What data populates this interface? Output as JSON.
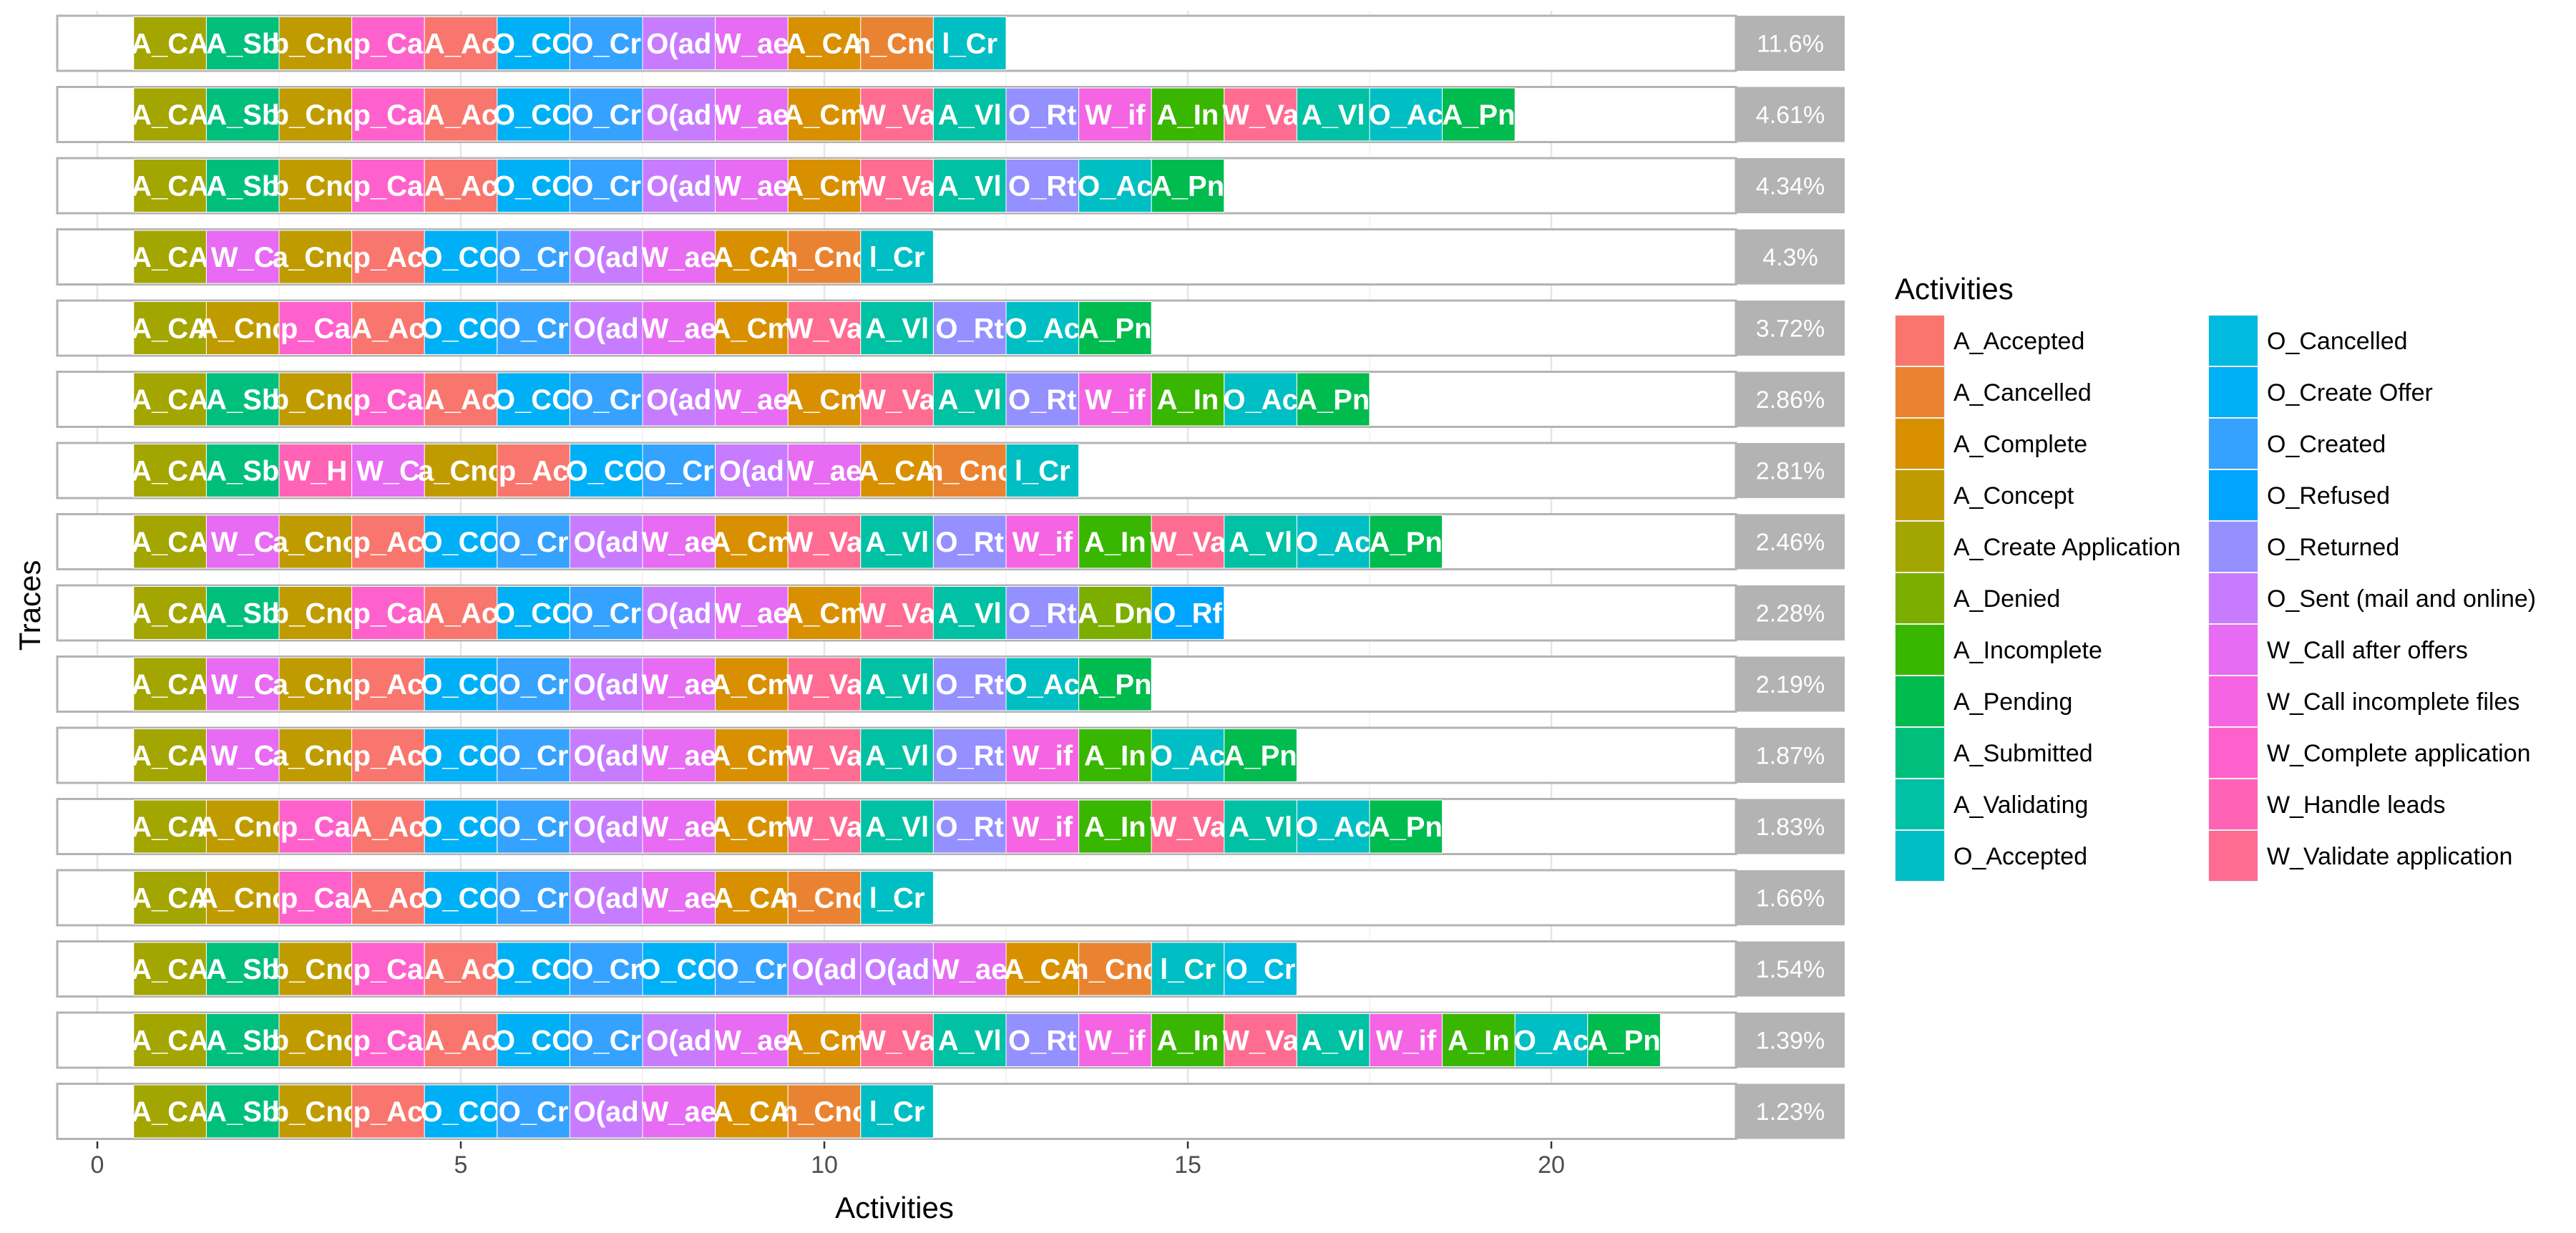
{
  "chart_data": {
    "type": "trace_explorer",
    "xlabel": "Activities",
    "ylabel": "Traces",
    "legend_title": "Activities",
    "legend_position": "right",
    "grid": true,
    "xlim": [
      -0.5,
      24.2
    ],
    "xticks": [
      0,
      5,
      10,
      15,
      20
    ],
    "activities": [
      {
        "name": "A_Accepted",
        "color": "#F8766D"
      },
      {
        "name": "A_Cancelled",
        "color": "#EA8331"
      },
      {
        "name": "A_Complete",
        "color": "#D89000"
      },
      {
        "name": "A_Concept",
        "color": "#C09B00"
      },
      {
        "name": "A_Create Application",
        "color": "#A3A500"
      },
      {
        "name": "A_Denied",
        "color": "#7CAE00"
      },
      {
        "name": "A_Incomplete",
        "color": "#39B600"
      },
      {
        "name": "A_Pending",
        "color": "#00BB4E"
      },
      {
        "name": "A_Submitted",
        "color": "#00BF7D"
      },
      {
        "name": "A_Validating",
        "color": "#00C1A3"
      },
      {
        "name": "O_Accepted",
        "color": "#00BFC4"
      },
      {
        "name": "O_Cancelled",
        "color": "#00BAE0"
      },
      {
        "name": "O_Create Offer",
        "color": "#00B0F6"
      },
      {
        "name": "O_Created",
        "color": "#35A2FF"
      },
      {
        "name": "O_Refused",
        "color": "#00A5FF"
      },
      {
        "name": "O_Returned",
        "color": "#9590FF"
      },
      {
        "name": "O_Sent (mail and online)",
        "color": "#C77CFF"
      },
      {
        "name": "W_Call after offers",
        "color": "#E76BF3"
      },
      {
        "name": "W_Call incomplete files",
        "color": "#F564E3"
      },
      {
        "name": "W_Complete application",
        "color": "#FF61CC"
      },
      {
        "name": "W_Handle leads",
        "color": "#FF63B6"
      },
      {
        "name": "W_Validate application",
        "color": "#FF6C91"
      }
    ],
    "traces": [
      {
        "percent": "11.6%",
        "labels": [
          "A_CA",
          "A_Sb",
          "b_Cnc",
          "p_Ca",
          "A_Ac",
          "O_CO",
          "O_Cr",
          "O(ad",
          "W_ae",
          "A_CA",
          "n_Cnc",
          "l_Cr"
        ],
        "colors": [
          "#A3A500",
          "#00BF7D",
          "#C09B00",
          "#FF61CC",
          "#F8766D",
          "#00B0F6",
          "#35A2FF",
          "#C77CFF",
          "#E76BF3",
          "#D89000",
          "#EA8331",
          "#00BFC4"
        ]
      },
      {
        "percent": "4.61%",
        "labels": [
          "A_CA",
          "A_Sb",
          "b_Cnc",
          "p_Ca",
          "A_Ac",
          "O_CO",
          "O_Cr",
          "O(ad",
          "W_ae",
          "A_Cm",
          "W_Va",
          "A_Vl",
          "O_Rt",
          "W_if",
          "A_In",
          "W_Va",
          "A_Vl",
          "O_Ac",
          "A_Pn"
        ],
        "colors": [
          "#A3A500",
          "#00BF7D",
          "#C09B00",
          "#FF61CC",
          "#F8766D",
          "#00B0F6",
          "#35A2FF",
          "#C77CFF",
          "#E76BF3",
          "#D89000",
          "#FF6C91",
          "#00C1A3",
          "#9590FF",
          "#F564E3",
          "#39B600",
          "#FF6C91",
          "#00C1A3",
          "#00BFC4",
          "#00BB4E"
        ]
      },
      {
        "percent": "4.34%",
        "labels": [
          "A_CA",
          "A_Sb",
          "b_Cnc",
          "p_Ca",
          "A_Ac",
          "O_CO",
          "O_Cr",
          "O(ad",
          "W_ae",
          "A_Cm",
          "W_Va",
          "A_Vl",
          "O_Rt",
          "O_Ac",
          "A_Pn"
        ],
        "colors": [
          "#A3A500",
          "#00BF7D",
          "#C09B00",
          "#FF61CC",
          "#F8766D",
          "#00B0F6",
          "#35A2FF",
          "#C77CFF",
          "#E76BF3",
          "#D89000",
          "#FF6C91",
          "#00C1A3",
          "#9590FF",
          "#00BFC4",
          "#00BB4E"
        ]
      },
      {
        "percent": "4.3%",
        "labels": [
          "A_CA",
          "W_C",
          "a_Cnc",
          "p_Ac",
          "O_CO",
          "O_Cr",
          "O(ad",
          "W_ae",
          "A_CA",
          "n_Cnc",
          "l_Cr"
        ],
        "colors": [
          "#A3A500",
          "#E76BF3",
          "#C09B00",
          "#F8766D",
          "#00B0F6",
          "#35A2FF",
          "#C77CFF",
          "#E76BF3",
          "#D89000",
          "#EA8331",
          "#00BFC4"
        ]
      },
      {
        "percent": "3.72%",
        "labels": [
          "A_CA",
          "A_Cnc",
          "p_Ca",
          "A_Ac",
          "O_CO",
          "O_Cr",
          "O(ad",
          "W_ae",
          "A_Cm",
          "W_Va",
          "A_Vl",
          "O_Rt",
          "O_Ac",
          "A_Pn"
        ],
        "colors": [
          "#A3A500",
          "#C09B00",
          "#FF61CC",
          "#F8766D",
          "#00B0F6",
          "#35A2FF",
          "#C77CFF",
          "#E76BF3",
          "#D89000",
          "#FF6C91",
          "#00C1A3",
          "#9590FF",
          "#00BFC4",
          "#00BB4E"
        ]
      },
      {
        "percent": "2.86%",
        "labels": [
          "A_CA",
          "A_Sb",
          "b_Cnc",
          "p_Ca",
          "A_Ac",
          "O_CO",
          "O_Cr",
          "O(ad",
          "W_ae",
          "A_Cm",
          "W_Va",
          "A_Vl",
          "O_Rt",
          "W_if",
          "A_In",
          "O_Ac",
          "A_Pn"
        ],
        "colors": [
          "#A3A500",
          "#00BF7D",
          "#C09B00",
          "#FF61CC",
          "#F8766D",
          "#00B0F6",
          "#35A2FF",
          "#C77CFF",
          "#E76BF3",
          "#D89000",
          "#FF6C91",
          "#00C1A3",
          "#9590FF",
          "#F564E3",
          "#39B600",
          "#00BFC4",
          "#00BB4E"
        ]
      },
      {
        "percent": "2.81%",
        "labels": [
          "A_CA",
          "A_Sb",
          "W_H",
          "W_C",
          "a_Cnc",
          "p_Ac",
          "O_CO",
          "O_Cr",
          "O(ad",
          "W_ae",
          "A_CA",
          "n_Cnc",
          "l_Cr"
        ],
        "colors": [
          "#A3A500",
          "#00BF7D",
          "#FF63B6",
          "#E76BF3",
          "#C09B00",
          "#F8766D",
          "#00B0F6",
          "#35A2FF",
          "#C77CFF",
          "#E76BF3",
          "#D89000",
          "#EA8331",
          "#00BFC4"
        ]
      },
      {
        "percent": "2.46%",
        "labels": [
          "A_CA",
          "W_C",
          "a_Cnc",
          "p_Ac",
          "O_CO",
          "O_Cr",
          "O(ad",
          "W_ae",
          "A_Cm",
          "W_Va",
          "A_Vl",
          "O_Rt",
          "W_if",
          "A_In",
          "W_Va",
          "A_Vl",
          "O_Ac",
          "A_Pn"
        ],
        "colors": [
          "#A3A500",
          "#E76BF3",
          "#C09B00",
          "#F8766D",
          "#00B0F6",
          "#35A2FF",
          "#C77CFF",
          "#E76BF3",
          "#D89000",
          "#FF6C91",
          "#00C1A3",
          "#9590FF",
          "#F564E3",
          "#39B600",
          "#FF6C91",
          "#00C1A3",
          "#00BFC4",
          "#00BB4E"
        ]
      },
      {
        "percent": "2.28%",
        "labels": [
          "A_CA",
          "A_Sb",
          "b_Cnc",
          "p_Ca",
          "A_Ac",
          "O_CO",
          "O_Cr",
          "O(ad",
          "W_ae",
          "A_Cm",
          "W_Va",
          "A_Vl",
          "O_Rt",
          "A_Dn",
          "O_Rf"
        ],
        "colors": [
          "#A3A500",
          "#00BF7D",
          "#C09B00",
          "#FF61CC",
          "#F8766D",
          "#00B0F6",
          "#35A2FF",
          "#C77CFF",
          "#E76BF3",
          "#D89000",
          "#FF6C91",
          "#00C1A3",
          "#9590FF",
          "#7CAE00",
          "#00A5FF"
        ]
      },
      {
        "percent": "2.19%",
        "labels": [
          "A_CA",
          "W_C",
          "a_Cnc",
          "p_Ac",
          "O_CO",
          "O_Cr",
          "O(ad",
          "W_ae",
          "A_Cm",
          "W_Va",
          "A_Vl",
          "O_Rt",
          "O_Ac",
          "A_Pn"
        ],
        "colors": [
          "#A3A500",
          "#E76BF3",
          "#C09B00",
          "#F8766D",
          "#00B0F6",
          "#35A2FF",
          "#C77CFF",
          "#E76BF3",
          "#D89000",
          "#FF6C91",
          "#00C1A3",
          "#9590FF",
          "#00BFC4",
          "#00BB4E"
        ]
      },
      {
        "percent": "1.87%",
        "labels": [
          "A_CA",
          "W_C",
          "a_Cnc",
          "p_Ac",
          "O_CO",
          "O_Cr",
          "O(ad",
          "W_ae",
          "A_Cm",
          "W_Va",
          "A_Vl",
          "O_Rt",
          "W_if",
          "A_In",
          "O_Ac",
          "A_Pn"
        ],
        "colors": [
          "#A3A500",
          "#E76BF3",
          "#C09B00",
          "#F8766D",
          "#00B0F6",
          "#35A2FF",
          "#C77CFF",
          "#E76BF3",
          "#D89000",
          "#FF6C91",
          "#00C1A3",
          "#9590FF",
          "#F564E3",
          "#39B600",
          "#00BFC4",
          "#00BB4E"
        ]
      },
      {
        "percent": "1.83%",
        "labels": [
          "A_CA",
          "A_Cnc",
          "p_Ca",
          "A_Ac",
          "O_CO",
          "O_Cr",
          "O(ad",
          "W_ae",
          "A_Cm",
          "W_Va",
          "A_Vl",
          "O_Rt",
          "W_if",
          "A_In",
          "W_Va",
          "A_Vl",
          "O_Ac",
          "A_Pn"
        ],
        "colors": [
          "#A3A500",
          "#C09B00",
          "#FF61CC",
          "#F8766D",
          "#00B0F6",
          "#35A2FF",
          "#C77CFF",
          "#E76BF3",
          "#D89000",
          "#FF6C91",
          "#00C1A3",
          "#9590FF",
          "#F564E3",
          "#39B600",
          "#FF6C91",
          "#00C1A3",
          "#00BFC4",
          "#00BB4E"
        ]
      },
      {
        "percent": "1.66%",
        "labels": [
          "A_CA",
          "A_Cnc",
          "p_Ca",
          "A_Ac",
          "O_CO",
          "O_Cr",
          "O(ad",
          "W_ae",
          "A_CA",
          "n_Cnc",
          "l_Cr"
        ],
        "colors": [
          "#A3A500",
          "#C09B00",
          "#FF61CC",
          "#F8766D",
          "#00B0F6",
          "#35A2FF",
          "#C77CFF",
          "#E76BF3",
          "#D89000",
          "#EA8331",
          "#00BFC4"
        ]
      },
      {
        "percent": "1.54%",
        "labels": [
          "A_CA",
          "A_Sb",
          "b_Cnc",
          "p_Ca",
          "A_Ac",
          "O_CO",
          "O_Cr",
          "O_CO",
          "O_Cr",
          "O(ad",
          "O(ad",
          "W_ae",
          "A_CA",
          "n_Cnc",
          "l_Cr",
          "O_Cr"
        ],
        "colors": [
          "#A3A500",
          "#00BF7D",
          "#C09B00",
          "#FF61CC",
          "#F8766D",
          "#00B0F6",
          "#35A2FF",
          "#00B0F6",
          "#35A2FF",
          "#C77CFF",
          "#C77CFF",
          "#E76BF3",
          "#D89000",
          "#EA8331",
          "#00BFC4",
          "#00BAE0"
        ]
      },
      {
        "percent": "1.39%",
        "labels": [
          "A_CA",
          "A_Sb",
          "b_Cnc",
          "p_Ca",
          "A_Ac",
          "O_CO",
          "O_Cr",
          "O(ad",
          "W_ae",
          "A_Cm",
          "W_Va",
          "A_Vl",
          "O_Rt",
          "W_if",
          "A_In",
          "W_Va",
          "A_Vl",
          "W_if",
          "A_In",
          "O_Ac",
          "A_Pn"
        ],
        "colors": [
          "#A3A500",
          "#00BF7D",
          "#C09B00",
          "#FF61CC",
          "#F8766D",
          "#00B0F6",
          "#35A2FF",
          "#C77CFF",
          "#E76BF3",
          "#D89000",
          "#FF6C91",
          "#00C1A3",
          "#9590FF",
          "#F564E3",
          "#39B600",
          "#FF6C91",
          "#00C1A3",
          "#F564E3",
          "#39B600",
          "#00BFC4",
          "#00BB4E"
        ]
      },
      {
        "percent": "1.23%",
        "labels": [
          "A_CA",
          "A_Sb",
          "b_Cnc",
          "p_Ac",
          "O_CO",
          "O_Cr",
          "O(ad",
          "W_ae",
          "A_CA",
          "n_Cnc",
          "l_Cr"
        ],
        "colors": [
          "#A3A500",
          "#00BF7D",
          "#C09B00",
          "#F8766D",
          "#00B0F6",
          "#35A2FF",
          "#C77CFF",
          "#E76BF3",
          "#D89000",
          "#EA8331",
          "#00BFC4"
        ]
      }
    ]
  }
}
